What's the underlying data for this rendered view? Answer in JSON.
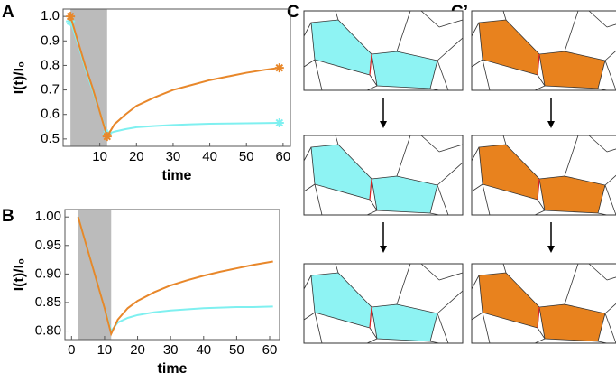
{
  "panel_labels": [
    "A",
    "B",
    "C",
    "C’"
  ],
  "chart_data": [
    {
      "type": "line",
      "xlabel": "time",
      "ylabel": "I(t)/I₀",
      "xlim": [
        0,
        62
      ],
      "ylim": [
        0.47,
        1.03
      ],
      "xticks": [
        10,
        20,
        30,
        40,
        50,
        60
      ],
      "yticks": [
        0.5,
        0.6,
        0.7,
        0.8,
        0.9,
        {
          "value": 1,
          "label": "1.0"
        }
      ],
      "shade": [
        2,
        12
      ],
      "markers": true,
      "x": [
        2,
        4,
        6,
        8,
        10,
        12,
        14,
        17,
        20,
        25,
        30,
        35,
        40,
        45,
        50,
        55,
        59
      ],
      "series": [
        {
          "color": "#7ff0f0",
          "values": [
            0.98,
            0.89,
            0.79,
            0.7,
            0.61,
            0.52,
            0.53,
            0.54,
            0.548,
            0.553,
            0.557,
            0.56,
            0.562,
            0.563,
            0.564,
            0.565,
            0.566
          ]
        },
        {
          "color": "#e8872a",
          "values": [
            1.0,
            0.9,
            0.8,
            0.71,
            0.61,
            0.51,
            0.56,
            0.6,
            0.635,
            0.67,
            0.7,
            0.72,
            0.74,
            0.755,
            0.77,
            0.782,
            0.79
          ]
        }
      ]
    },
    {
      "type": "line",
      "xlabel": "time",
      "ylabel": "I(t)/I₀",
      "xlim": [
        -2,
        63
      ],
      "ylim": [
        0.785,
        1.013
      ],
      "xticks": [
        0,
        10,
        20,
        30,
        40,
        50,
        60
      ],
      "yticks": [
        {
          "value": 0.8,
          "label": "0.80"
        },
        0.85,
        {
          "value": 0.9,
          "label": "0.90"
        },
        0.95,
        {
          "value": 1,
          "label": "1.00"
        }
      ],
      "shade": [
        2,
        12
      ],
      "markers": false,
      "x": [
        2,
        4,
        6,
        8,
        10,
        12,
        14,
        17,
        20,
        25,
        30,
        35,
        40,
        45,
        50,
        55,
        61
      ],
      "series": [
        {
          "color": "#7ff0f0",
          "values": [
            1.0,
            0.96,
            0.92,
            0.88,
            0.84,
            0.8,
            0.815,
            0.823,
            0.828,
            0.833,
            0.836,
            0.838,
            0.84,
            0.841,
            0.842,
            0.842,
            0.843
          ]
        },
        {
          "color": "#e8872a",
          "values": [
            1.0,
            0.96,
            0.92,
            0.88,
            0.84,
            0.795,
            0.82,
            0.84,
            0.853,
            0.868,
            0.88,
            0.889,
            0.897,
            0.904,
            0.91,
            0.916,
            0.922
          ]
        }
      ]
    }
  ]
}
